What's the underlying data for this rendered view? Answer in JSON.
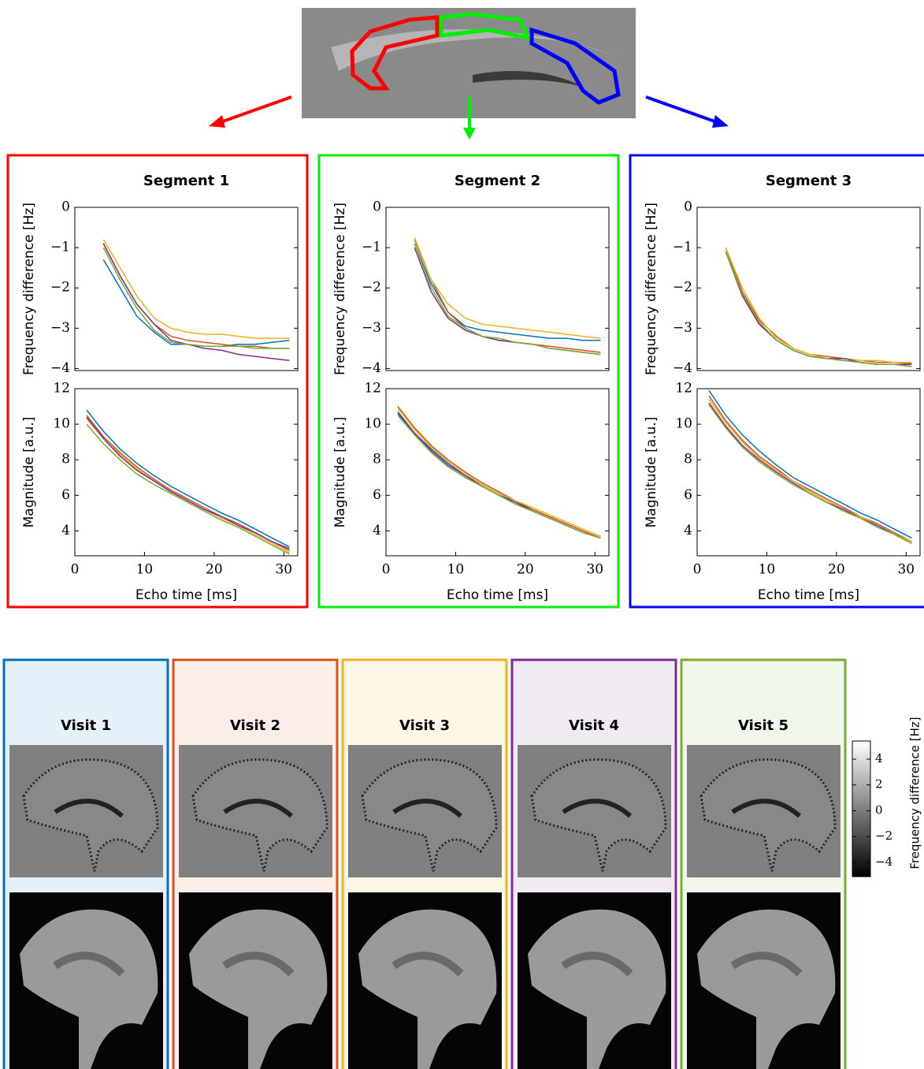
{
  "chart_data": [
    {
      "type": "line",
      "title": "Segment 1",
      "ylabel": "Frequency difference [Hz]",
      "xlim": [
        0,
        32
      ],
      "ylim": [
        -4.05,
        0
      ],
      "yticks": [
        0,
        {
          "value": -1,
          "label": "−1"
        },
        {
          "value": -2,
          "label": "−2"
        },
        {
          "value": -3,
          "label": "−3"
        },
        {
          "value": -4,
          "label": "−4"
        }
      ],
      "x": [
        4.1,
        6.5,
        8.9,
        11.4,
        13.8,
        16.2,
        18.6,
        21.1,
        23.5,
        25.9,
        28.3,
        30.8
      ],
      "series": [
        {
          "color": "#0072bd",
          "values": [
            -1.3,
            -2.0,
            -2.7,
            -3.1,
            -3.4,
            -3.4,
            -3.45,
            -3.45,
            -3.4,
            -3.4,
            -3.35,
            -3.3
          ]
        },
        {
          "color": "#d95319",
          "values": [
            -0.9,
            -1.7,
            -2.4,
            -2.9,
            -3.2,
            -3.3,
            -3.35,
            -3.4,
            -3.45,
            -3.45,
            -3.5,
            -3.5
          ]
        },
        {
          "color": "#edb120",
          "values": [
            -0.8,
            -1.5,
            -2.2,
            -2.75,
            -3.0,
            -3.1,
            -3.15,
            -3.15,
            -3.2,
            -3.25,
            -3.25,
            -3.25
          ]
        },
        {
          "color": "#7e2f8e",
          "values": [
            -0.9,
            -1.7,
            -2.4,
            -2.9,
            -3.3,
            -3.4,
            -3.5,
            -3.55,
            -3.65,
            -3.7,
            -3.75,
            -3.8
          ]
        },
        {
          "color": "#77ac30",
          "values": [
            -1.0,
            -1.8,
            -2.5,
            -3.05,
            -3.35,
            -3.4,
            -3.45,
            -3.45,
            -3.45,
            -3.5,
            -3.5,
            -3.5
          ]
        }
      ]
    },
    {
      "type": "line",
      "ylabel": "Magnitude [a.u.]",
      "xlabel": "Echo time [ms]",
      "xlim": [
        0,
        32
      ],
      "ylim": [
        2.6,
        12
      ],
      "xticks": [
        0,
        10,
        20,
        30
      ],
      "yticks": [
        4,
        6,
        8,
        10,
        12
      ],
      "x": [
        1.7,
        4.1,
        6.5,
        8.9,
        11.4,
        13.8,
        16.2,
        18.6,
        21.1,
        23.5,
        25.9,
        28.3,
        30.8
      ],
      "series": [
        {
          "color": "#0072bd",
          "values": [
            10.8,
            9.6,
            8.6,
            7.8,
            7.1,
            6.5,
            6.0,
            5.5,
            5.0,
            4.6,
            4.1,
            3.6,
            3.1
          ]
        },
        {
          "color": "#d95319",
          "values": [
            10.5,
            9.3,
            8.4,
            7.6,
            6.9,
            6.3,
            5.8,
            5.3,
            4.8,
            4.4,
            3.9,
            3.4,
            2.9
          ]
        },
        {
          "color": "#edb120",
          "values": [
            10.3,
            9.2,
            8.3,
            7.5,
            6.8,
            6.2,
            5.7,
            5.2,
            4.7,
            4.3,
            3.8,
            3.3,
            2.8
          ]
        },
        {
          "color": "#7e2f8e",
          "values": [
            10.4,
            9.2,
            8.2,
            7.4,
            6.8,
            6.2,
            5.7,
            5.2,
            4.8,
            4.3,
            3.9,
            3.4,
            3.0
          ]
        },
        {
          "color": "#77ac30",
          "values": [
            10.0,
            8.9,
            8.0,
            7.2,
            6.6,
            6.1,
            5.6,
            5.1,
            4.6,
            4.2,
            3.7,
            3.2,
            2.7
          ]
        }
      ]
    },
    {
      "type": "line",
      "title": "Segment 2",
      "ylabel": "Frequency difference [Hz]",
      "xlim": [
        0,
        32
      ],
      "ylim": [
        -4.05,
        0
      ],
      "yticks": [
        0,
        {
          "value": -1,
          "label": "−1"
        },
        {
          "value": -2,
          "label": "−2"
        },
        {
          "value": -3,
          "label": "−3"
        },
        {
          "value": -4,
          "label": "−4"
        }
      ],
      "x": [
        4.1,
        6.5,
        8.9,
        11.4,
        13.8,
        16.2,
        18.6,
        21.1,
        23.5,
        25.9,
        28.3,
        30.8
      ],
      "series": [
        {
          "color": "#0072bd",
          "values": [
            -0.9,
            -1.9,
            -2.6,
            -2.95,
            -3.05,
            -3.1,
            -3.15,
            -3.2,
            -3.25,
            -3.25,
            -3.3,
            -3.3
          ]
        },
        {
          "color": "#d95319",
          "values": [
            -0.8,
            -1.8,
            -2.6,
            -3.0,
            -3.2,
            -3.3,
            -3.35,
            -3.4,
            -3.45,
            -3.5,
            -3.55,
            -3.6
          ]
        },
        {
          "color": "#edb120",
          "values": [
            -0.75,
            -1.8,
            -2.4,
            -2.75,
            -2.9,
            -2.95,
            -3.0,
            -3.05,
            -3.1,
            -3.15,
            -3.2,
            -3.25
          ]
        },
        {
          "color": "#7e2f8e",
          "values": [
            -1.0,
            -2.1,
            -2.75,
            -3.05,
            -3.2,
            -3.3,
            -3.35,
            -3.4,
            -3.5,
            -3.55,
            -3.6,
            -3.65
          ]
        },
        {
          "color": "#77ac30",
          "values": [
            -0.9,
            -2.0,
            -2.7,
            -3.0,
            -3.2,
            -3.25,
            -3.35,
            -3.4,
            -3.5,
            -3.55,
            -3.6,
            -3.65
          ]
        }
      ]
    },
    {
      "type": "line",
      "ylabel": "Magnitude [a.u.]",
      "xlabel": "Echo time [ms]",
      "xlim": [
        0,
        32
      ],
      "ylim": [
        2.6,
        12
      ],
      "xticks": [
        0,
        10,
        20,
        30
      ],
      "yticks": [
        4,
        6,
        8,
        10,
        12
      ],
      "x": [
        1.7,
        4.1,
        6.5,
        8.9,
        11.4,
        13.8,
        16.2,
        18.6,
        21.1,
        23.5,
        25.9,
        28.3,
        30.8
      ],
      "series": [
        {
          "color": "#0072bd",
          "values": [
            10.6,
            9.5,
            8.6,
            7.8,
            7.1,
            6.6,
            6.1,
            5.6,
            5.2,
            4.8,
            4.4,
            4.0,
            3.6
          ]
        },
        {
          "color": "#d95319",
          "values": [
            11.0,
            9.8,
            8.8,
            8.0,
            7.3,
            6.7,
            6.2,
            5.7,
            5.2,
            4.8,
            4.4,
            4.0,
            3.6
          ]
        },
        {
          "color": "#edb120",
          "values": [
            10.9,
            9.7,
            8.7,
            7.9,
            7.2,
            6.6,
            6.1,
            5.7,
            5.3,
            4.9,
            4.5,
            4.1,
            3.7
          ]
        },
        {
          "color": "#7e2f8e",
          "values": [
            10.7,
            9.5,
            8.5,
            7.7,
            7.1,
            6.5,
            6.0,
            5.6,
            5.1,
            4.7,
            4.3,
            3.9,
            3.6
          ]
        },
        {
          "color": "#77ac30",
          "values": [
            10.5,
            9.4,
            8.4,
            7.6,
            7.0,
            6.5,
            6.0,
            5.5,
            5.1,
            4.7,
            4.3,
            3.9,
            3.6
          ]
        }
      ]
    },
    {
      "type": "line",
      "title": "Segment 3",
      "ylabel": "Frequency difference [Hz]",
      "xlim": [
        0,
        32
      ],
      "ylim": [
        -4.05,
        0
      ],
      "yticks": [
        0,
        {
          "value": -1,
          "label": "−1"
        },
        {
          "value": -2,
          "label": "−2"
        },
        {
          "value": -3,
          "label": "−3"
        },
        {
          "value": -4,
          "label": "−4"
        }
      ],
      "x": [
        4.1,
        6.5,
        8.9,
        11.4,
        13.8,
        16.2,
        18.6,
        21.1,
        23.5,
        25.9,
        28.3,
        30.8
      ],
      "series": [
        {
          "color": "#0072bd",
          "values": [
            -1.1,
            -2.2,
            -2.9,
            -3.3,
            -3.55,
            -3.7,
            -3.75,
            -3.8,
            -3.85,
            -3.9,
            -3.9,
            -3.95
          ]
        },
        {
          "color": "#d95319",
          "values": [
            -1.0,
            -2.1,
            -2.8,
            -3.2,
            -3.5,
            -3.65,
            -3.7,
            -3.75,
            -3.8,
            -3.85,
            -3.85,
            -3.88
          ]
        },
        {
          "color": "#edb120",
          "values": [
            -1.0,
            -2.0,
            -2.75,
            -3.25,
            -3.5,
            -3.65,
            -3.75,
            -3.75,
            -3.8,
            -3.8,
            -3.85,
            -3.85
          ]
        },
        {
          "color": "#7e2f8e",
          "values": [
            -1.1,
            -2.2,
            -2.9,
            -3.3,
            -3.55,
            -3.7,
            -3.75,
            -3.75,
            -3.85,
            -3.9,
            -3.9,
            -3.9
          ]
        },
        {
          "color": "#77ac30",
          "values": [
            -1.1,
            -2.15,
            -2.85,
            -3.3,
            -3.55,
            -3.7,
            -3.75,
            -3.8,
            -3.85,
            -3.9,
            -3.9,
            -3.95
          ]
        }
      ]
    },
    {
      "type": "line",
      "ylabel": "Magnitude [a.u.]",
      "xlabel": "Echo time [ms]",
      "xlim": [
        0,
        32
      ],
      "ylim": [
        2.6,
        12
      ],
      "xticks": [
        0,
        10,
        20,
        30
      ],
      "yticks": [
        4,
        6,
        8,
        10,
        12
      ],
      "x": [
        1.7,
        4.1,
        6.5,
        8.9,
        11.4,
        13.8,
        16.2,
        18.6,
        21.1,
        23.5,
        25.9,
        28.3,
        30.8
      ],
      "series": [
        {
          "color": "#0072bd",
          "values": [
            11.9,
            10.5,
            9.4,
            8.5,
            7.7,
            7.0,
            6.5,
            6.0,
            5.5,
            5.0,
            4.6,
            4.1,
            3.6
          ]
        },
        {
          "color": "#d95319",
          "values": [
            11.6,
            10.2,
            9.1,
            8.2,
            7.5,
            6.8,
            6.3,
            5.8,
            5.3,
            4.8,
            4.4,
            3.9,
            3.4
          ]
        },
        {
          "color": "#edb120",
          "values": [
            11.4,
            10.1,
            9.0,
            8.1,
            7.4,
            6.8,
            6.2,
            5.7,
            5.2,
            4.8,
            4.3,
            3.8,
            3.4
          ]
        },
        {
          "color": "#7e2f8e",
          "values": [
            11.2,
            9.9,
            8.8,
            8.0,
            7.3,
            6.7,
            6.1,
            5.6,
            5.2,
            4.7,
            4.3,
            3.8,
            3.3
          ]
        },
        {
          "color": "#77ac30",
          "values": [
            11.1,
            9.8,
            8.7,
            7.9,
            7.2,
            6.6,
            6.1,
            5.6,
            5.1,
            4.7,
            4.2,
            3.8,
            3.3
          ]
        }
      ]
    }
  ],
  "visits": [
    {
      "title": "Visit 1",
      "color": "#0072bd"
    },
    {
      "title": "Visit 2",
      "color": "#d95319"
    },
    {
      "title": "Visit 3",
      "color": "#edb120"
    },
    {
      "title": "Visit 4",
      "color": "#7e2f8e"
    },
    {
      "title": "Visit 5",
      "color": "#77ac30"
    }
  ],
  "colorbar": {
    "label": "Frequency difference [Hz]",
    "lim": [
      -5.1,
      5.4
    ],
    "ticks": [
      4,
      2,
      0,
      {
        "value": -2,
        "label": "−2"
      },
      {
        "value": -4,
        "label": "−4"
      }
    ]
  }
}
